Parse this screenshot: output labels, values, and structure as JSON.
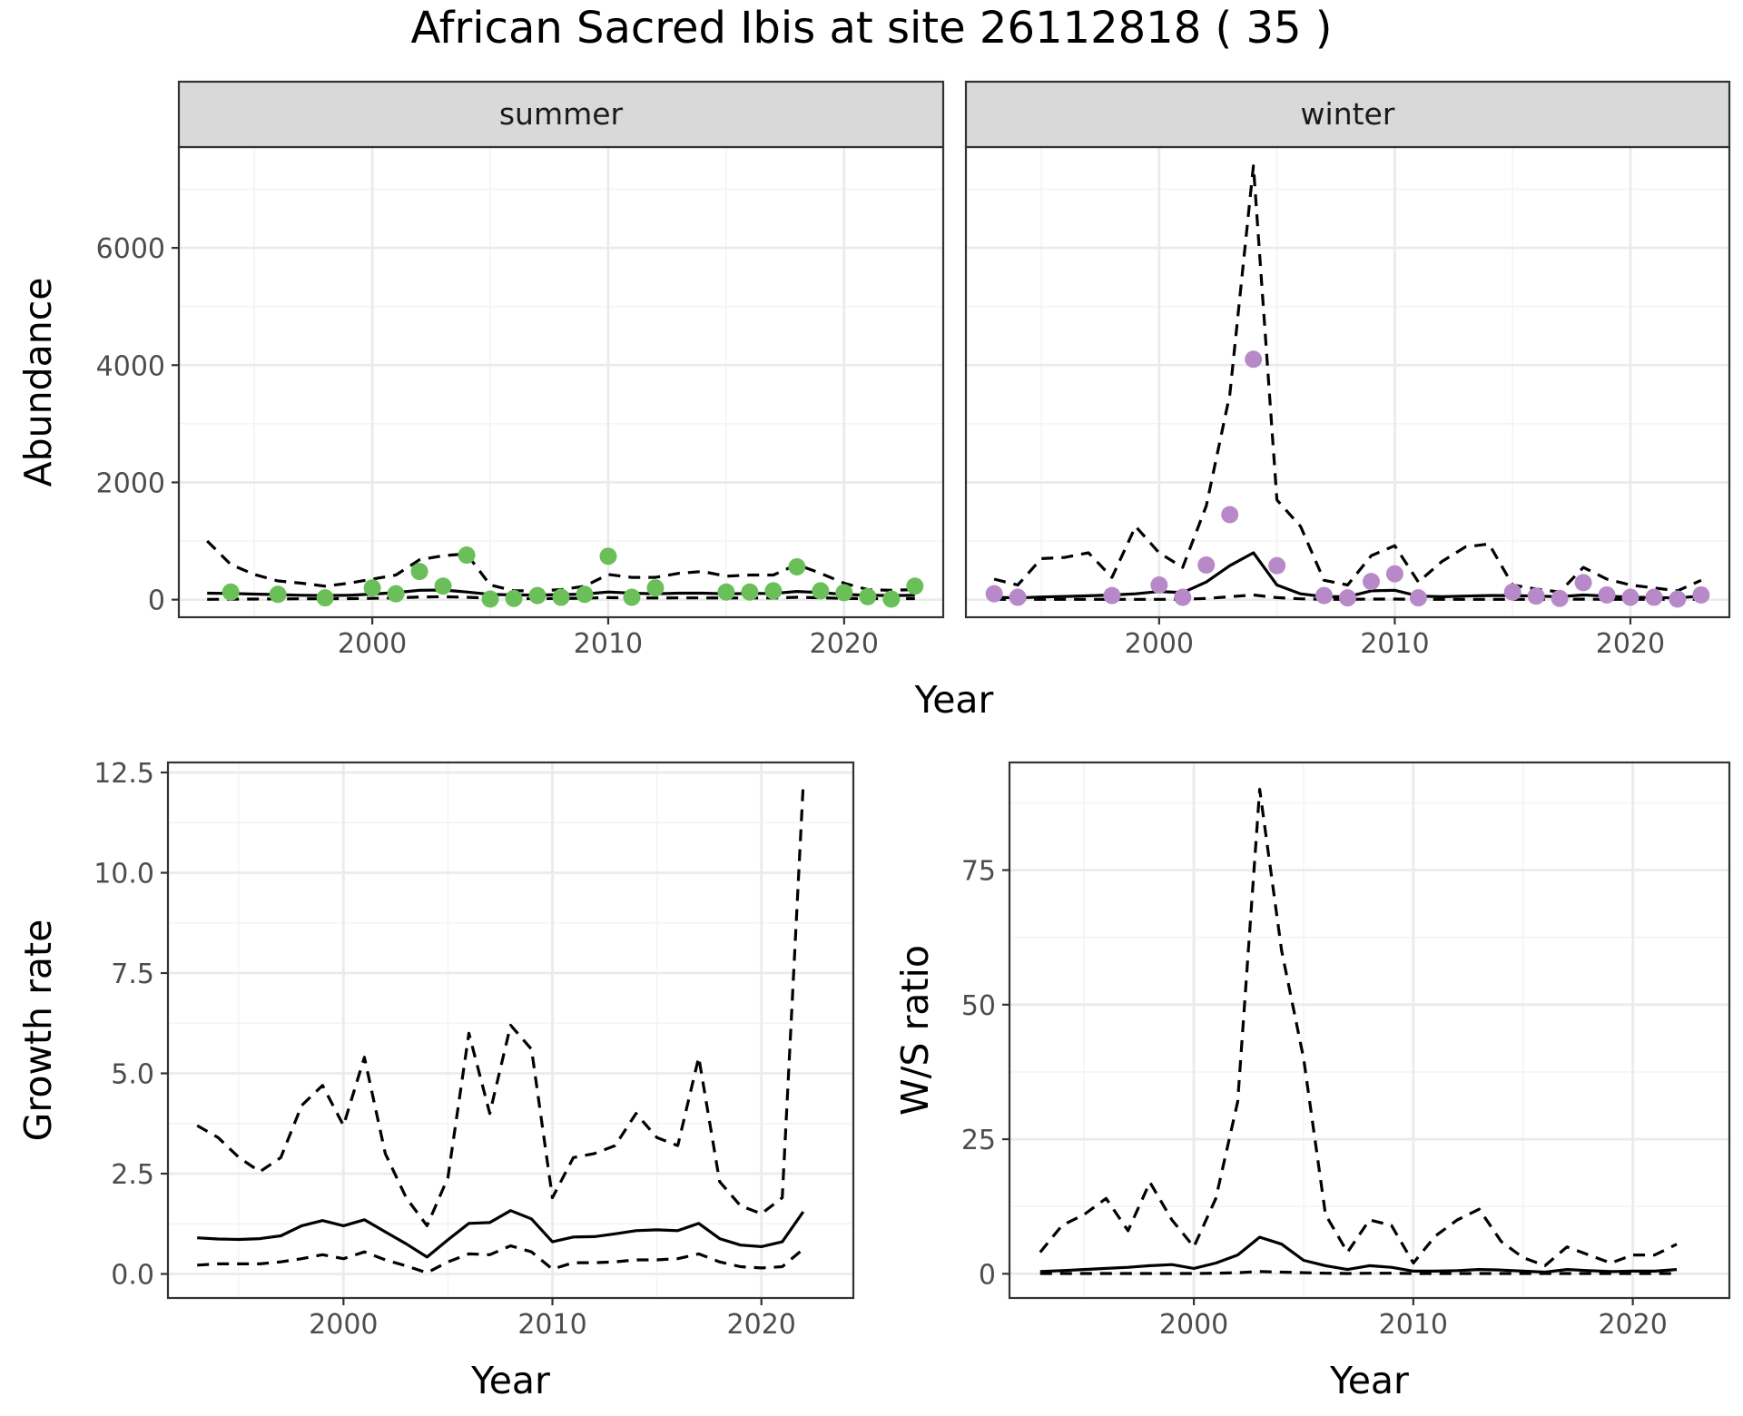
{
  "title": "African Sacred Ibis at site 26112818 ( 35 )",
  "colors": {
    "summer_points": "#6abf59",
    "winter_points": "#b889c8",
    "lines": "#000000",
    "grid_major": "#ebebeb",
    "grid_minor": "#f3f3f3",
    "strip_fill": "#d9d9d9",
    "panel_border": "#333333"
  },
  "chart_data": [
    {
      "type": "line",
      "facet": "summer",
      "xlabel": "Year",
      "ylabel": "Abundance",
      "xlim": [
        1991.8,
        2024.2
      ],
      "ylim": [
        -300,
        7720
      ],
      "x_ticks": [
        2000,
        2010,
        2020
      ],
      "y_ticks": [
        0,
        2000,
        4000,
        6000
      ],
      "grid": true,
      "series": [
        {
          "style": "dashed",
          "x": [
            1993,
            1994,
            1995,
            1996,
            1997,
            1998,
            1999,
            2000,
            2001,
            2002,
            2003,
            2004,
            2005,
            2006,
            2007,
            2008,
            2009,
            2010,
            2011,
            2012,
            2013,
            2014,
            2015,
            2016,
            2017,
            2018,
            2019,
            2020,
            2021,
            2022,
            2023
          ],
          "values": [
            1000,
            600,
            430,
            320,
            280,
            230,
            280,
            350,
            420,
            680,
            750,
            780,
            250,
            150,
            150,
            170,
            230,
            430,
            380,
            380,
            450,
            480,
            400,
            420,
            420,
            600,
            450,
            280,
            170,
            160,
            170
          ]
        },
        {
          "style": "solid",
          "x": [
            1993,
            1994,
            1995,
            1996,
            1997,
            1998,
            1999,
            2000,
            2001,
            2002,
            2003,
            2004,
            2005,
            2006,
            2007,
            2008,
            2009,
            2010,
            2011,
            2012,
            2013,
            2014,
            2015,
            2016,
            2017,
            2018,
            2019,
            2020,
            2021,
            2022,
            2023
          ],
          "values": [
            110,
            105,
            95,
            85,
            75,
            70,
            75,
            95,
            120,
            160,
            165,
            130,
            90,
            80,
            80,
            85,
            95,
            130,
            110,
            100,
            110,
            110,
            100,
            105,
            105,
            140,
            120,
            90,
            75,
            70,
            75
          ]
        },
        {
          "style": "dashed",
          "x": [
            1993,
            1994,
            1995,
            1996,
            1997,
            1998,
            1999,
            2000,
            2001,
            2002,
            2003,
            2004,
            2005,
            2006,
            2007,
            2008,
            2009,
            2010,
            2011,
            2012,
            2013,
            2014,
            2015,
            2016,
            2017,
            2018,
            2019,
            2020,
            2021,
            2022,
            2023
          ],
          "values": [
            5,
            8,
            10,
            12,
            14,
            15,
            18,
            22,
            30,
            45,
            50,
            40,
            25,
            18,
            18,
            20,
            25,
            35,
            30,
            28,
            30,
            30,
            28,
            28,
            28,
            40,
            32,
            22,
            18,
            16,
            18
          ]
        }
      ],
      "points": {
        "x": [
          1994,
          1996,
          1998,
          2000,
          2001,
          2002,
          2003,
          2004,
          2005,
          2006,
          2007,
          2008,
          2009,
          2010,
          2011,
          2012,
          2015,
          2016,
          2017,
          2018,
          2019,
          2020,
          2021,
          2022,
          2023
        ],
        "values": [
          130,
          90,
          30,
          200,
          100,
          480,
          230,
          760,
          10,
          20,
          70,
          40,
          90,
          740,
          40,
          200,
          130,
          130,
          150,
          560,
          150,
          120,
          50,
          10,
          230
        ]
      }
    },
    {
      "type": "line",
      "facet": "winter",
      "xlabel": "Year",
      "ylabel": "Abundance",
      "xlim": [
        1991.8,
        2024.2
      ],
      "ylim": [
        -300,
        7720
      ],
      "x_ticks": [
        2000,
        2010,
        2020
      ],
      "y_ticks": [
        0,
        2000,
        4000,
        6000
      ],
      "grid": true,
      "series": [
        {
          "style": "dashed",
          "x": [
            1993,
            1994,
            1995,
            1996,
            1997,
            1998,
            1999,
            2000,
            2001,
            2002,
            2003,
            2004,
            2005,
            2006,
            2007,
            2008,
            2009,
            2010,
            2011,
            2012,
            2013,
            2014,
            2015,
            2016,
            2017,
            2018,
            2019,
            2020,
            2021,
            2022,
            2023
          ],
          "values": [
            350,
            250,
            700,
            720,
            800,
            380,
            1250,
            800,
            550,
            1600,
            3500,
            7400,
            1700,
            1250,
            330,
            250,
            750,
            920,
            300,
            650,
            900,
            950,
            250,
            180,
            130,
            550,
            350,
            250,
            200,
            150,
            330
          ]
        },
        {
          "style": "solid",
          "x": [
            1993,
            1994,
            1995,
            1996,
            1997,
            1998,
            1999,
            2000,
            2001,
            2002,
            2003,
            2004,
            2005,
            2006,
            2007,
            2008,
            2009,
            2010,
            2011,
            2012,
            2013,
            2014,
            2015,
            2016,
            2017,
            2018,
            2019,
            2020,
            2021,
            2022,
            2023
          ],
          "values": [
            40,
            30,
            45,
            55,
            65,
            80,
            100,
            140,
            120,
            300,
            580,
            800,
            250,
            100,
            50,
            50,
            150,
            160,
            60,
            50,
            60,
            70,
            70,
            60,
            50,
            80,
            60,
            40,
            35,
            30,
            60
          ]
        },
        {
          "style": "dashed",
          "x": [
            1993,
            1994,
            1995,
            1996,
            1997,
            1998,
            1999,
            2000,
            2001,
            2002,
            2003,
            2004,
            2005,
            2006,
            2007,
            2008,
            2009,
            2010,
            2011,
            2012,
            2013,
            2014,
            2015,
            2016,
            2017,
            2018,
            2019,
            2020,
            2021,
            2022,
            2023
          ],
          "values": [
            5,
            5,
            5,
            5,
            5,
            5,
            5,
            5,
            5,
            20,
            50,
            80,
            35,
            15,
            5,
            5,
            10,
            10,
            5,
            5,
            5,
            5,
            5,
            5,
            5,
            8,
            5,
            5,
            5,
            5,
            5
          ]
        }
      ],
      "points": {
        "x": [
          1993,
          1994,
          1998,
          2000,
          2001,
          2002,
          2003,
          2004,
          2005,
          2007,
          2008,
          2009,
          2010,
          2011,
          2015,
          2016,
          2017,
          2018,
          2019,
          2020,
          2021,
          2022,
          2023
        ],
        "values": [
          100,
          40,
          70,
          250,
          40,
          590,
          1450,
          4100,
          580,
          70,
          30,
          310,
          440,
          30,
          130,
          60,
          20,
          290,
          80,
          40,
          40,
          10,
          80
        ]
      }
    },
    {
      "type": "line",
      "xlabel": "Year",
      "ylabel": "Growth rate",
      "xlim": [
        1991.6,
        2024.4
      ],
      "ylim": [
        -0.6,
        12.75
      ],
      "x_ticks": [
        2000,
        2010,
        2020
      ],
      "y_ticks": [
        0.0,
        2.5,
        5.0,
        7.5,
        10.0,
        12.5
      ],
      "y_tick_labels": [
        "0.0",
        "2.5",
        "5.0",
        "7.5",
        "10.0",
        "12.5"
      ],
      "grid": true,
      "series": [
        {
          "style": "dashed",
          "x": [
            1993,
            1994,
            1995,
            1996,
            1997,
            1998,
            1999,
            2000,
            2001,
            2002,
            2003,
            2004,
            2005,
            2006,
            2007,
            2008,
            2009,
            2010,
            2011,
            2012,
            2013,
            2014,
            2015,
            2016,
            2017,
            2018,
            2019,
            2020,
            2021,
            2022
          ],
          "values": [
            3.7,
            3.4,
            2.9,
            2.55,
            2.9,
            4.2,
            4.7,
            3.7,
            5.4,
            3.0,
            1.9,
            1.2,
            2.4,
            6.0,
            4.0,
            6.2,
            5.6,
            1.9,
            2.9,
            3.0,
            3.2,
            4.0,
            3.4,
            3.2,
            5.4,
            2.3,
            1.7,
            1.5,
            1.9,
            12.2
          ]
        },
        {
          "style": "solid",
          "x": [
            1993,
            1994,
            1995,
            1996,
            1997,
            1998,
            1999,
            2000,
            2001,
            2002,
            2003,
            2004,
            2005,
            2006,
            2007,
            2008,
            2009,
            2010,
            2011,
            2012,
            2013,
            2014,
            2015,
            2016,
            2017,
            2018,
            2019,
            2020,
            2021,
            2022
          ],
          "values": [
            0.9,
            0.87,
            0.86,
            0.88,
            0.95,
            1.2,
            1.33,
            1.2,
            1.35,
            1.05,
            0.75,
            0.42,
            0.85,
            1.26,
            1.28,
            1.58,
            1.37,
            0.8,
            0.92,
            0.93,
            1.0,
            1.08,
            1.1,
            1.08,
            1.26,
            0.88,
            0.72,
            0.68,
            0.8,
            1.55
          ]
        },
        {
          "style": "dashed",
          "x": [
            1993,
            1994,
            1995,
            1996,
            1997,
            1998,
            1999,
            2000,
            2001,
            2002,
            2003,
            2004,
            2005,
            2006,
            2007,
            2008,
            2009,
            2010,
            2011,
            2012,
            2013,
            2014,
            2015,
            2016,
            2017,
            2018,
            2019,
            2020,
            2021,
            2022
          ],
          "values": [
            0.22,
            0.25,
            0.25,
            0.25,
            0.3,
            0.38,
            0.48,
            0.38,
            0.55,
            0.35,
            0.2,
            0.03,
            0.3,
            0.5,
            0.48,
            0.7,
            0.55,
            0.12,
            0.28,
            0.28,
            0.3,
            0.35,
            0.35,
            0.38,
            0.5,
            0.3,
            0.18,
            0.15,
            0.18,
            0.62
          ]
        }
      ]
    },
    {
      "type": "line",
      "xlabel": "Year",
      "ylabel": "W/S ratio",
      "xlim": [
        1991.6,
        2024.4
      ],
      "ylim": [
        -4.5,
        95
      ],
      "x_ticks": [
        2000,
        2010,
        2020
      ],
      "y_ticks": [
        0,
        25,
        50,
        75
      ],
      "grid": true,
      "series": [
        {
          "style": "dashed",
          "x": [
            1993,
            1994,
            1995,
            1996,
            1997,
            1998,
            1999,
            2000,
            2001,
            2002,
            2003,
            2004,
            2005,
            2006,
            2007,
            2008,
            2009,
            2010,
            2011,
            2012,
            2013,
            2014,
            2015,
            2016,
            2017,
            2018,
            2019,
            2020,
            2021,
            2022
          ],
          "values": [
            4,
            9,
            11,
            14,
            8,
            17,
            10,
            5,
            14,
            32,
            90,
            60,
            40,
            11,
            4,
            10,
            9,
            2,
            7,
            10,
            12,
            6,
            3,
            1.5,
            5,
            3.5,
            2,
            3.5,
            3.5,
            5.5
          ]
        },
        {
          "style": "solid",
          "x": [
            1993,
            1994,
            1995,
            1996,
            1997,
            1998,
            1999,
            2000,
            2001,
            2002,
            2003,
            2004,
            2005,
            2006,
            2007,
            2008,
            2009,
            2010,
            2011,
            2012,
            2013,
            2014,
            2015,
            2016,
            2017,
            2018,
            2019,
            2020,
            2021,
            2022
          ],
          "values": [
            0.4,
            0.6,
            0.8,
            1.0,
            1.2,
            1.5,
            1.7,
            1.0,
            2.0,
            3.5,
            6.8,
            5.5,
            2.5,
            1.5,
            0.8,
            1.5,
            1.2,
            0.5,
            0.5,
            0.6,
            0.8,
            0.7,
            0.5,
            0.3,
            0.8,
            0.6,
            0.4,
            0.5,
            0.5,
            0.8
          ]
        },
        {
          "style": "dashed",
          "x": [
            1993,
            1994,
            1995,
            1996,
            1997,
            1998,
            1999,
            2000,
            2001,
            2002,
            2003,
            2004,
            2005,
            2006,
            2007,
            2008,
            2009,
            2010,
            2011,
            2012,
            2013,
            2014,
            2015,
            2016,
            2017,
            2018,
            2019,
            2020,
            2021,
            2022
          ],
          "values": [
            0.05,
            0.05,
            0.05,
            0.05,
            0.05,
            0.05,
            0.05,
            0.05,
            0.1,
            0.2,
            0.4,
            0.3,
            0.2,
            0.1,
            0.05,
            0.1,
            0.1,
            0.05,
            0.05,
            0.05,
            0.05,
            0.05,
            0.05,
            0.05,
            0.05,
            0.05,
            0.05,
            0.05,
            0.05,
            0.05
          ]
        }
      ]
    }
  ]
}
